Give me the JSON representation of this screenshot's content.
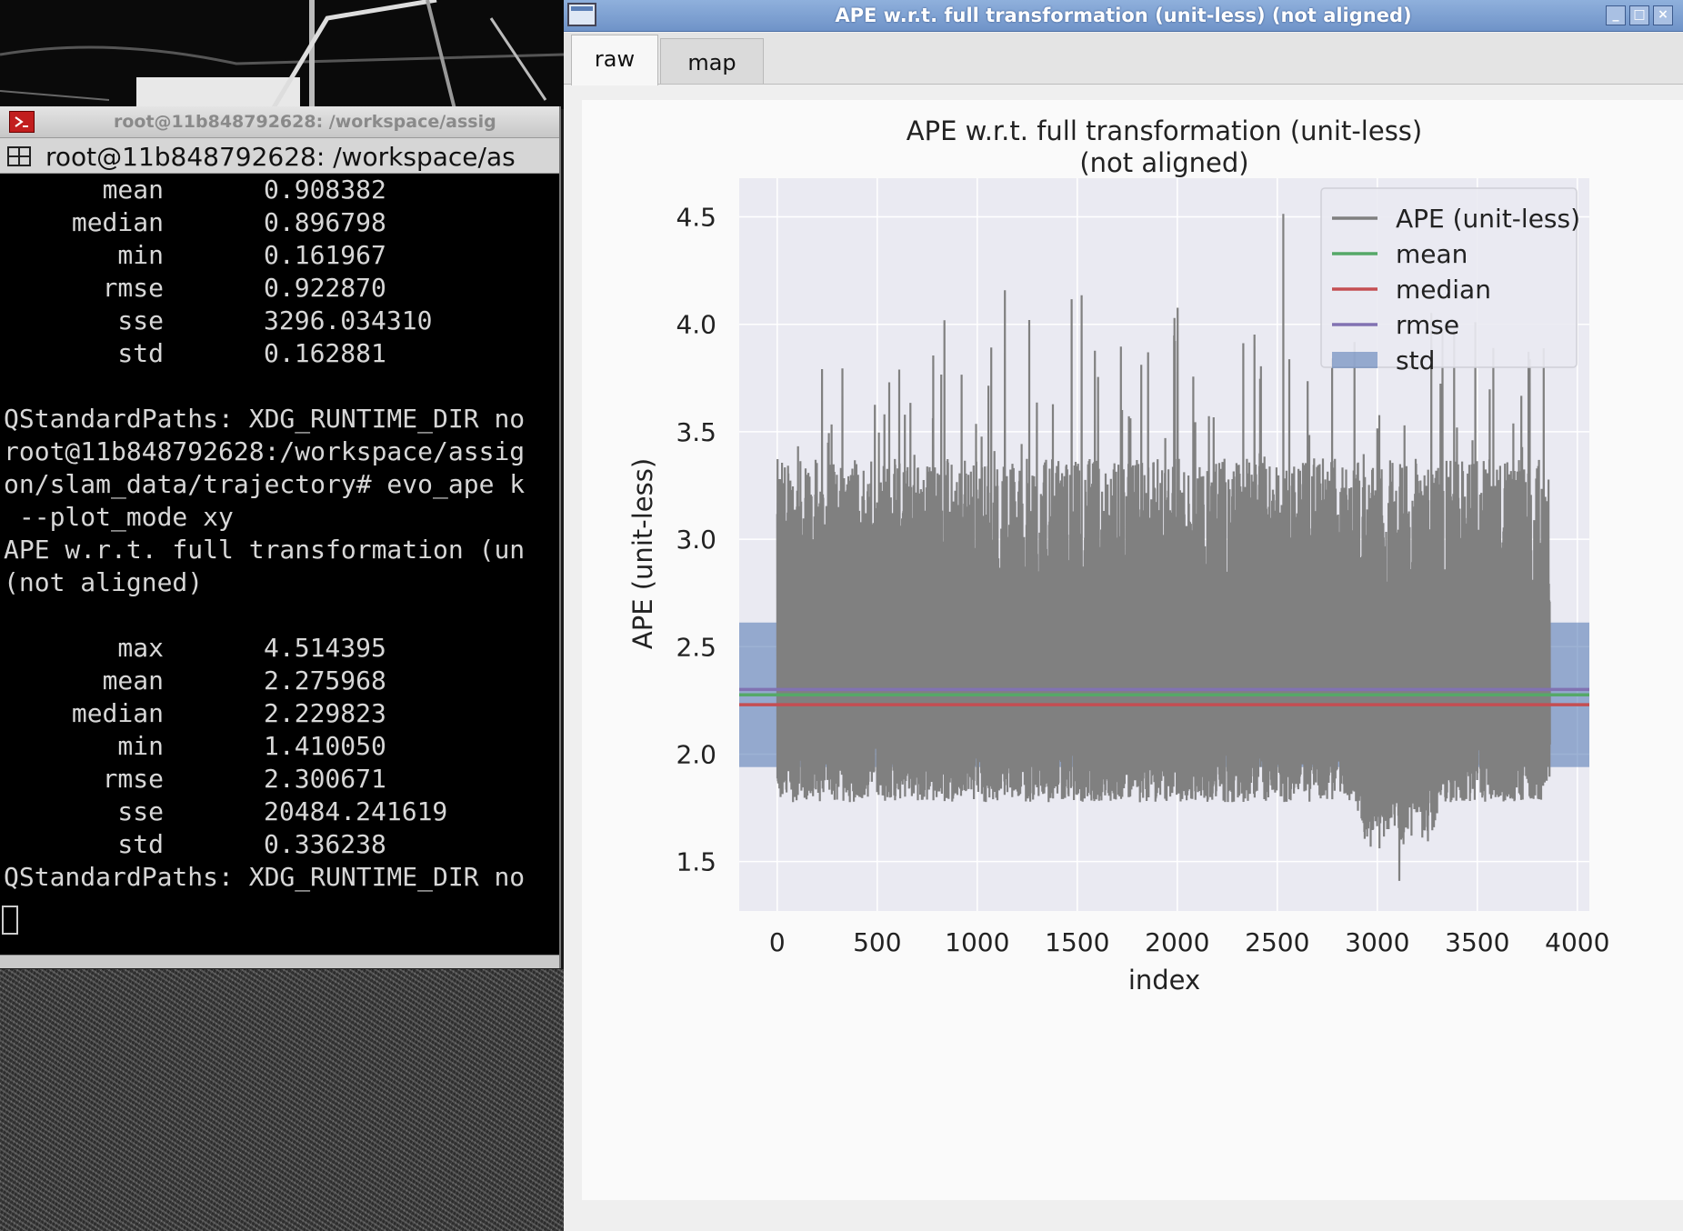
{
  "terminal": {
    "title": "root@11b848792628: /workspace/assig",
    "tab_label": "root@11b848792628: /workspace/as",
    "stats_block_1": [
      {
        "name": "mean",
        "value": "0.908382"
      },
      {
        "name": "median",
        "value": "0.896798"
      },
      {
        "name": "min",
        "value": "0.161967"
      },
      {
        "name": "rmse",
        "value": "0.922870"
      },
      {
        "name": "sse",
        "value": "3296.034310"
      },
      {
        "name": "std",
        "value": "0.162881"
      }
    ],
    "lines": [
      "QStandardPaths: XDG_RUNTIME_DIR no",
      "root@11b848792628:/workspace/assig",
      "on/slam_data/trajectory# evo_ape k",
      " --plot_mode xy",
      "APE w.r.t. full transformation (un",
      "(not aligned)"
    ],
    "stats_block_2": [
      {
        "name": "max",
        "value": "4.514395"
      },
      {
        "name": "mean",
        "value": "2.275968"
      },
      {
        "name": "median",
        "value": "2.229823"
      },
      {
        "name": "min",
        "value": "1.410050"
      },
      {
        "name": "rmse",
        "value": "2.300671"
      },
      {
        "name": "sse",
        "value": "20484.241619"
      },
      {
        "name": "std",
        "value": "0.336238"
      }
    ],
    "last_line": "QStandardPaths: XDG_RUNTIME_DIR no"
  },
  "plot_window": {
    "title": "APE w.r.t. full transformation (unit-less) (not aligned)",
    "tabs": [
      {
        "label": "raw",
        "active": true
      },
      {
        "label": "map",
        "active": false
      }
    ]
  },
  "chart_data": {
    "type": "line",
    "title_line1": "APE w.r.t. full transformation (unit-less)",
    "title_line2": "(not aligned)",
    "xlabel": "index",
    "ylabel": "APE (unit-less)",
    "xlim": [
      -190,
      4060
    ],
    "ylim": [
      1.27,
      4.68
    ],
    "xticks": [
      0,
      500,
      1000,
      1500,
      2000,
      2500,
      3000,
      3500,
      4000
    ],
    "yticks": [
      1.5,
      2.0,
      2.5,
      3.0,
      3.5,
      4.0,
      4.5
    ],
    "n_points": 3864,
    "grid": true,
    "legend_position": "upper right",
    "series": [
      {
        "name": "APE (unit-less)",
        "kind": "line",
        "color": "#808080",
        "stats": {
          "max": 4.514395,
          "min": 1.41005
        }
      },
      {
        "name": "mean",
        "kind": "hline",
        "value": 2.275968,
        "color": "#55a868"
      },
      {
        "name": "median",
        "kind": "hline",
        "value": 2.229823,
        "color": "#c44e52"
      },
      {
        "name": "rmse",
        "kind": "hline",
        "value": 2.300671,
        "color": "#8172b2"
      },
      {
        "name": "std",
        "kind": "band",
        "lower": 1.93973,
        "upper": 2.612206,
        "color": "#4c72b0"
      }
    ],
    "notable_peaks": [
      {
        "x": 1260,
        "y": 4.02
      },
      {
        "x": 2530,
        "y": 4.514
      },
      {
        "x": 3580,
        "y": 3.89
      },
      {
        "x": 560,
        "y": 3.73
      },
      {
        "x": 3110,
        "y": 1.41
      }
    ]
  }
}
